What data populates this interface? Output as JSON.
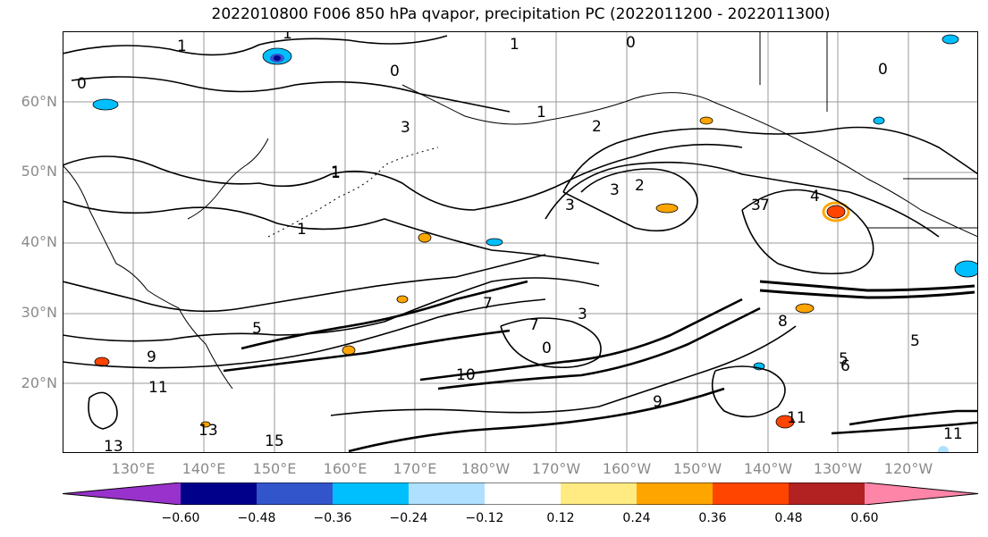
{
  "title": "2022010800 F006 850 hPa qvapor, precipitation PC (2022011200 - 2022011300)",
  "lat_labels": [
    "60°N",
    "50°N",
    "40°N",
    "30°N",
    "20°N"
  ],
  "lon_labels": [
    "130°E",
    "140°E",
    "150°E",
    "160°E",
    "170°E",
    "180°W",
    "170°W",
    "160°W",
    "150°W",
    "140°W",
    "130°W",
    "120°W"
  ],
  "contour_labels": [
    "1",
    "1",
    "0",
    "0",
    "0",
    "1",
    "0",
    "1",
    "1",
    "3",
    "2",
    "3",
    "2",
    "3",
    "1",
    "1",
    "4",
    "3",
    "5",
    "7",
    "3",
    "7",
    "0",
    "9",
    "10",
    "11",
    "13",
    "13",
    "15",
    "11",
    "7",
    "6",
    "8",
    "5",
    "9",
    "5",
    "11"
  ],
  "colorbar": {
    "ticks": [
      "−0.60",
      "−0.48",
      "−0.36",
      "−0.24",
      "−0.12",
      "0.12",
      "0.24",
      "0.36",
      "0.48",
      "0.60"
    ],
    "colors": [
      "#9932cc",
      "#00008b",
      "#3355cc",
      "#00bfff",
      "#b0e0ff",
      "#ffffff",
      "#ffeb82",
      "#ffa500",
      "#ff4500",
      "#b22222",
      "#ff85a8"
    ]
  },
  "colors": {
    "contour": "#000000",
    "grid": "#9a9a9a",
    "coast": "#000000",
    "tick_text": "#8a8a8a"
  }
}
